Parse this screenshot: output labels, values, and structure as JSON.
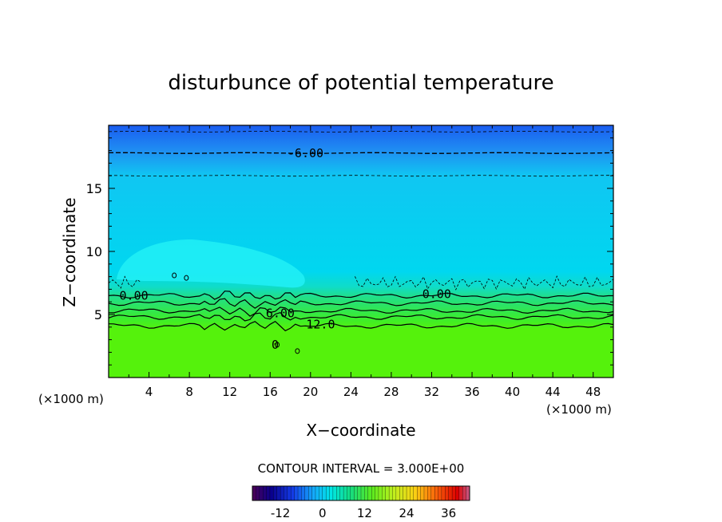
{
  "chart_data": {
    "type": "heatmap",
    "title": "disturbunce of potential temperature",
    "xlabel": "X−coordinate",
    "ylabel": "Z−coordinate",
    "xlim": [
      0,
      50
    ],
    "ylim": [
      0,
      20
    ],
    "x_ticks": [
      4,
      8,
      12,
      16,
      20,
      24,
      28,
      32,
      36,
      40,
      44,
      48
    ],
    "y_ticks": [
      5,
      10,
      15
    ],
    "x_unit": "(×1000 m)",
    "x_unit_right": "(×1000 m)",
    "contour_interval_label": "CONTOUR INTERVAL = 3.000E+00",
    "contour_labels": [
      {
        "text": "-6.00",
        "x": 19.5,
        "z": 17.8
      },
      {
        "text": "0.00",
        "x": 2.5,
        "z": 6.5
      },
      {
        "text": "0.00",
        "x": 32.5,
        "z": 6.6
      },
      {
        "text": "6.00",
        "x": 17,
        "z": 5.1
      },
      {
        "text": "12.0",
        "x": 21,
        "z": 4.2
      },
      {
        "text": "0",
        "x": 16.5,
        "z": 2.6
      }
    ],
    "contour_lines": [
      {
        "level": -9,
        "z": 19.5,
        "dashed": true
      },
      {
        "level": -6,
        "z": 17.8,
        "dashed": true
      },
      {
        "level": -3,
        "z": 16.0,
        "dashed": true
      },
      {
        "level": 0,
        "z": 6.5,
        "dashed": false
      },
      {
        "level": 3,
        "z": 5.9,
        "dashed": false
      },
      {
        "level": 6,
        "z": 5.3,
        "dashed": false
      },
      {
        "level": 9,
        "z": 4.8,
        "dashed": false
      },
      {
        "level": 12,
        "z": 4.1,
        "dashed": false
      }
    ],
    "value_by_height": [
      {
        "z": 0,
        "value": 18
      },
      {
        "z": 4,
        "value": 15
      },
      {
        "z": 5,
        "value": 9
      },
      {
        "z": 6,
        "value": 3
      },
      {
        "z": 7,
        "value": 0
      },
      {
        "z": 9,
        "value": -1
      },
      {
        "z": 15,
        "value": -2
      },
      {
        "z": 17,
        "value": -5
      },
      {
        "z": 20,
        "value": -9
      }
    ],
    "colorbar": {
      "min": -20,
      "max": 42,
      "ticks": [
        "-12",
        "0",
        "12",
        "24",
        "36"
      ],
      "tick_values": [
        -12,
        0,
        12,
        24,
        36
      ]
    }
  }
}
